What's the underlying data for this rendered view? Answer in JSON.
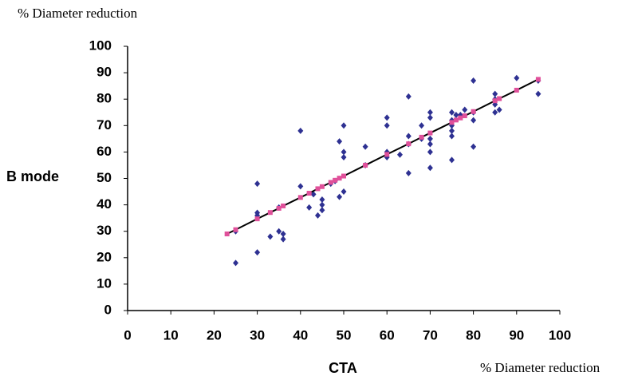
{
  "chart_data": {
    "type": "scatter",
    "y_unit_label": "% Diameter reduction",
    "y_label": "B mode",
    "x_label": "CTA",
    "x_unit_label": "% Diameter reduction",
    "xlim": [
      0,
      100
    ],
    "xticks": [
      0,
      10,
      20,
      30,
      40,
      50,
      60,
      70,
      80,
      90,
      100
    ],
    "ylim": [
      0,
      100
    ],
    "yticks": [
      0,
      10,
      20,
      30,
      40,
      50,
      60,
      70,
      80,
      90,
      100
    ],
    "series": [
      {
        "color": "#2e3192",
        "marker": "diamond",
        "line": false,
        "x": [
          25,
          25,
          30,
          30,
          30,
          30,
          33,
          35,
          35,
          36,
          36,
          40,
          40,
          42,
          43,
          44,
          45,
          45,
          45,
          47,
          48,
          49,
          49,
          50,
          50,
          50,
          50,
          55,
          55,
          60,
          60,
          60,
          60,
          63,
          65,
          65,
          65,
          65,
          68,
          68,
          70,
          70,
          70,
          70,
          70,
          70,
          75,
          75,
          75,
          75,
          75,
          75,
          76,
          77,
          78,
          80,
          80,
          80,
          80,
          85,
          85,
          85,
          85,
          86,
          90,
          95,
          95
        ],
        "values": [
          18,
          30,
          22,
          36,
          37,
          48,
          28,
          30,
          39,
          27,
          29,
          47,
          68,
          39,
          44,
          36,
          38,
          40,
          42,
          48,
          49,
          64,
          43,
          45,
          58,
          60,
          70,
          55,
          62,
          58,
          60,
          70,
          73,
          59,
          52,
          63,
          66,
          81,
          65,
          70,
          54,
          60,
          63,
          65,
          73,
          75,
          57,
          66,
          68,
          70,
          72,
          75,
          74,
          74,
          76,
          62,
          72,
          75,
          87,
          75,
          78,
          80,
          82,
          76,
          88,
          82,
          87
        ]
      },
      {
        "color": "#e0509a",
        "marker": "square",
        "line": true,
        "line_color": "#000000",
        "x": [
          23,
          25,
          30,
          33,
          35,
          36,
          40,
          42,
          44,
          45,
          47,
          48,
          49,
          50,
          55,
          60,
          65,
          68,
          70,
          75,
          76,
          77,
          78,
          80,
          85,
          86,
          90,
          95
        ],
        "values": [
          29.0,
          30.6,
          34.7,
          37.1,
          38.7,
          39.6,
          42.8,
          44.4,
          46.1,
          46.9,
          48.5,
          49.3,
          50.1,
          50.9,
          55.0,
          59.1,
          63.1,
          65.6,
          67.2,
          71.2,
          72.1,
          72.9,
          73.7,
          75.3,
          79.4,
          80.2,
          83.4,
          87.5
        ]
      }
    ]
  }
}
